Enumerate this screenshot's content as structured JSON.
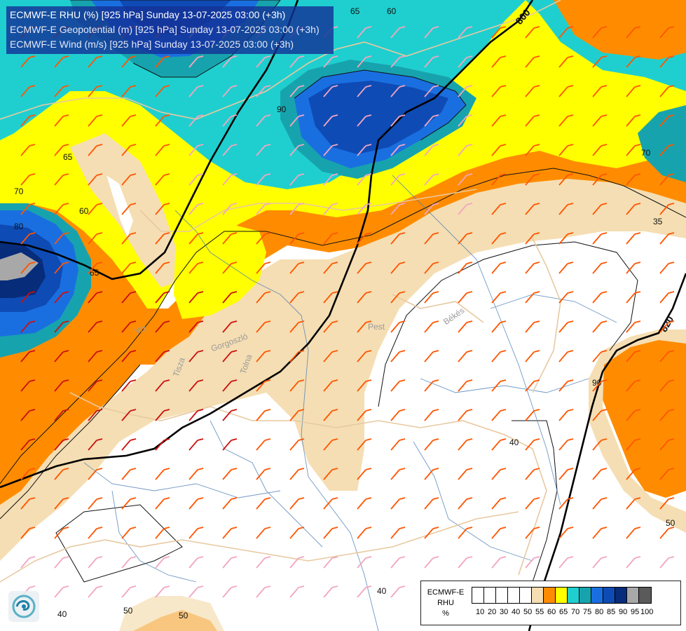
{
  "title": {
    "line1": "ECMWF-E RHU (%) [925 hPa] Sunday 13-07-2025 03:00 (+3h)",
    "line2": "ECMWF-E Geopotential (m) [925 hPa] Sunday 13-07-2025 03:00 (+3h)",
    "line3": "ECMWF-E Wind (m/s) [925 hPa] Sunday 13-07-2025 03:00 (+3h)"
  },
  "legend": {
    "title": [
      "ECMWF-E",
      "RHU",
      "%"
    ],
    "ticks": [
      "10",
      "20",
      "30",
      "40",
      "50",
      "55",
      "60",
      "65",
      "70",
      "75",
      "80",
      "85",
      "90",
      "95",
      "100"
    ],
    "colors": [
      "#ffffff",
      "#ffffff",
      "#ffffff",
      "#ffffff",
      "#ffffff",
      "#f5deb3",
      "#ff8c00",
      "#ffff00",
      "#1fcfcf",
      "#17a3ad",
      "#1a6fe0",
      "#0f4bb5",
      "#062c7a",
      "#a8a8a8",
      "#5a5a5a"
    ]
  },
  "map": {
    "geopotential_labels": [
      "800",
      "820"
    ],
    "rhu_contour_labels": [
      "65",
      "60",
      "65",
      "60",
      "70",
      "80",
      "65",
      "70",
      "35",
      "40",
      "40",
      "40",
      "50",
      "50",
      "50",
      "90",
      "90"
    ],
    "places": [
      "Pest",
      "Békés",
      "Tolna",
      "Tisza",
      "Gorgoszló",
      "Viz"
    ]
  },
  "colors": {
    "title_bg": "#14329a",
    "geopotential_line": "#000000",
    "barb_red": "#cc1010",
    "barb_orange": "#ff5500",
    "barb_pink": "#f2a6c0",
    "borders": "#e8c9a0",
    "rivers": "#4a7db5"
  },
  "icons": [
    "ecmwf-logo-icon",
    "wind-barb-icon"
  ]
}
